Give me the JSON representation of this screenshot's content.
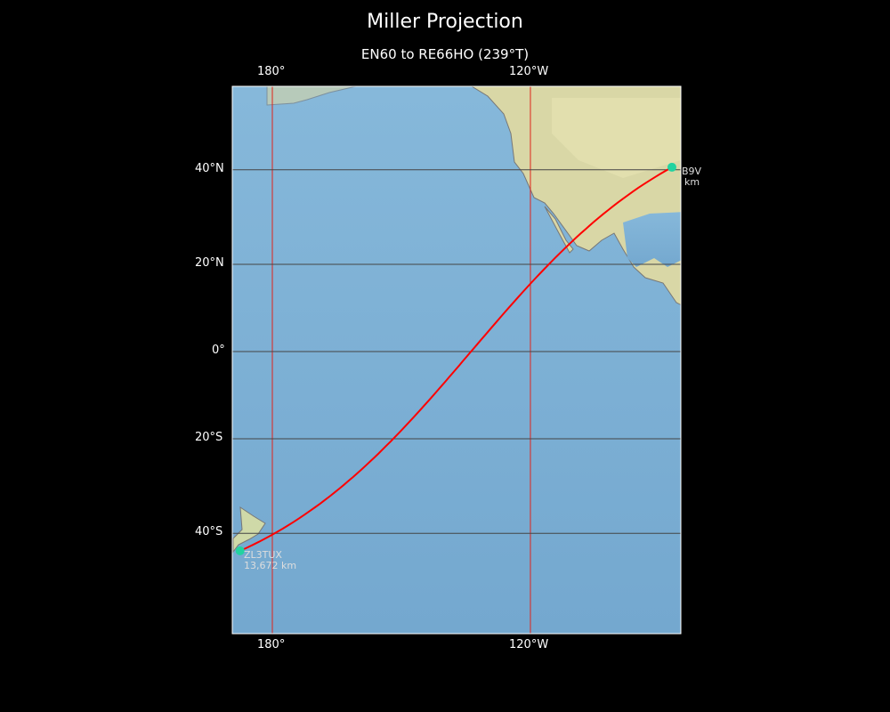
{
  "title": "Miller Projection",
  "subtitle": "EN60 to RE66HO (239°T)",
  "map": {
    "projection": "miller",
    "lon_range": [
      170.7,
      -85
    ],
    "lat_range": [
      -60,
      57
    ],
    "top_ticks": [
      "180°",
      "120°W"
    ],
    "bottom_ticks": [
      "180°",
      "120°W"
    ],
    "lat_ticks": [
      "40°N",
      "20°N",
      "0°",
      "20°S",
      "40°S"
    ],
    "meridian_color": "#e0241b",
    "parallel_color": "#444444",
    "path_color": "#ff0000",
    "marker_color": "#22d3a0"
  },
  "endpoints": [
    {
      "call": "ZL3TUX",
      "distance": "13,672 km",
      "lat": -43.4,
      "lon": 172.5
    },
    {
      "call": "B9V",
      "distance": "km",
      "lat": 40.5,
      "lon": -87.1
    }
  ]
}
